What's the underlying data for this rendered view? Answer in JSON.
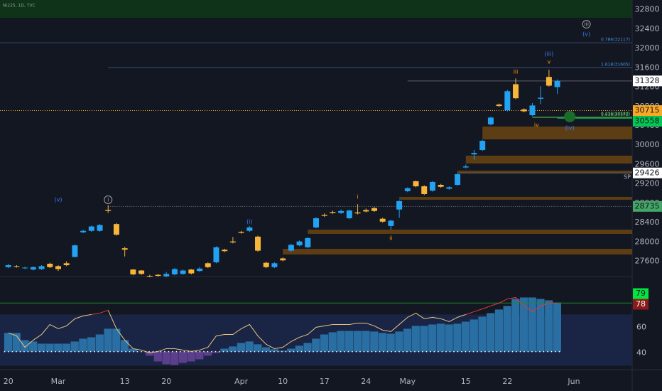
{
  "header": "NI225, 1D, TVC",
  "chart_data": {
    "type": "candlestick",
    "xlim": [
      -1,
      75
    ],
    "xticks": [
      {
        "value": 0,
        "label": "20"
      },
      {
        "value": 6,
        "label": "Mar"
      },
      {
        "value": 14,
        "label": "13"
      },
      {
        "value": 19,
        "label": "20"
      },
      {
        "value": 28,
        "label": "Apr"
      },
      {
        "value": 33,
        "label": "10"
      },
      {
        "value": 38,
        "label": "17"
      },
      {
        "value": 43,
        "label": "24"
      },
      {
        "value": 48,
        "label": "May"
      },
      {
        "value": 55,
        "label": "15"
      },
      {
        "value": 60,
        "label": "22"
      },
      {
        "value": 68,
        "label": "Jun"
      }
    ],
    "ylim": [
      27300,
      33000
    ],
    "yticks": [
      27600,
      28000,
      28400,
      28800,
      29200,
      29600,
      30000,
      30400,
      30800,
      31200,
      31600,
      32000,
      32400,
      32800
    ],
    "colors": {
      "up": "#22a2f2",
      "down": "#f7b53a"
    },
    "open": [
      27480,
      27500,
      27460,
      27430,
      27440,
      27550,
      27500,
      27560,
      27690,
      28200,
      28230,
      28230,
      28660,
      28370,
      27870,
      27430,
      27410,
      27300,
      27320,
      27290,
      27330,
      27340,
      27430,
      27400,
      27560,
      27580,
      27840,
      28010,
      28210,
      28230,
      28110,
      27570,
      27480,
      27660,
      27820,
      27930,
      27890,
      28300,
      28560,
      28620,
      28600,
      28490,
      28610,
      28660,
      28700,
      28480,
      28330,
      28670,
      29050,
      29255,
      29150,
      29060,
      29180,
      29100,
      29180,
      29540,
      29810,
      29900,
      30430,
      30840,
      30720,
      31260,
      30740,
      30620,
      30960,
      31410,
      31200
    ],
    "high": [
      27550,
      27520,
      27490,
      27500,
      27520,
      27570,
      27520,
      27600,
      27950,
      28250,
      28340,
      28370,
      28760,
      28390,
      27900,
      27440,
      27420,
      27320,
      27340,
      27380,
      27460,
      27430,
      27440,
      27480,
      27580,
      27910,
      27860,
      28100,
      28230,
      28330,
      28130,
      27590,
      27580,
      27680,
      27960,
      28030,
      28100,
      28510,
      28590,
      28650,
      28670,
      28670,
      28780,
      28690,
      28720,
      28500,
      28460,
      28860,
      29130,
      29270,
      29170,
      29260,
      29200,
      29150,
      29420,
      29600,
      29900,
      30110,
      30590,
      30860,
      31140,
      31380,
      30760,
      30870,
      31220,
      31560,
      31360
    ],
    "low": [
      27460,
      27470,
      27440,
      27410,
      27420,
      27460,
      27400,
      27500,
      27680,
      28180,
      28210,
      28210,
      28600,
      28130,
      27700,
      27310,
      27320,
      27270,
      27280,
      27270,
      27310,
      27320,
      27330,
      27380,
      27460,
      27560,
      27790,
      27970,
      28170,
      28210,
      27800,
      27460,
      27460,
      27600,
      27800,
      27910,
      27870,
      28280,
      28520,
      28580,
      28580,
      28470,
      28570,
      28610,
      28620,
      28400,
      28250,
      28500,
      29030,
      29130,
      28970,
      29040,
      29120,
      29080,
      29160,
      29520,
      29700,
      29880,
      30410,
      30790,
      30700,
      30950,
      30680,
      30600,
      30850,
      31210,
      31060
    ],
    "close": [
      27520,
      27490,
      27470,
      27480,
      27500,
      27480,
      27440,
      27520,
      27930,
      28230,
      28320,
      28350,
      28640,
      28150,
      27840,
      27330,
      27340,
      27290,
      27300,
      27340,
      27440,
      27410,
      27350,
      27450,
      27480,
      27890,
      27810,
      27990,
      28190,
      28300,
      27820,
      27480,
      27560,
      27620,
      27940,
      28010,
      28080,
      28490,
      28540,
      28600,
      28640,
      28650,
      28590,
      28630,
      28640,
      28420,
      28440,
      28845,
      29110,
      29150,
      28990,
      29240,
      29140,
      29130,
      29400,
      29560,
      29840,
      30090,
      30570,
      30810,
      31115,
      30970,
      30700,
      30820,
      30980,
      31230,
      31328
    ],
    "zone_color": "#5c3d14",
    "zones": [
      {
        "start": 57,
        "low": 30120,
        "high": 30385
      },
      {
        "start": 55,
        "low": 29621,
        "high": 29783
      },
      {
        "start": 54,
        "low": 29415,
        "high": 29474
      },
      {
        "start": 47,
        "low": 28872,
        "high": 28931
      },
      {
        "start": 36,
        "low": 28167,
        "high": 28255
      },
      {
        "start": 33,
        "low": 27741,
        "high": 27858
      }
    ],
    "levels": [
      {
        "label": "0.786(32117)",
        "value": 32117,
        "color": "#3d5a80",
        "start": -1
      },
      {
        "label": "1.618(31605)",
        "value": 31605,
        "color": "#3d5a80",
        "start": 12
      },
      {
        "label": "0.236(30580)",
        "value": 30580,
        "color": "#4caf50",
        "start": 63
      },
      {
        "label": "1.618(30572)",
        "value": 30572,
        "color": "#4caf50",
        "start": 63
      }
    ],
    "price_labels": [
      {
        "value": 31328,
        "bg": "#ffffff",
        "line": "#5d606b",
        "dashed": false,
        "start": 48
      },
      {
        "value": 30715,
        "bg": "#f9a825",
        "line": "#f9a825",
        "dashed": true,
        "start": -1
      },
      {
        "value": 30558,
        "bg": "#00c853",
        "line": "#00c853",
        "dashed": false,
        "start": 66
      },
      {
        "value": 29426,
        "bg": "#ffffff",
        "line": "#5d606b",
        "dashed": false,
        "start": 54
      },
      {
        "value": 28735,
        "bg": "#43a566",
        "line": "#787b86",
        "dashed": true,
        "start": 12
      }
    ],
    "annotations": [
      {
        "text": "(v)",
        "index": 6,
        "price": 28872,
        "color": "#3d7bff",
        "circle": false
      },
      {
        "text": "i",
        "index": 12,
        "price": 28872,
        "color": "#9e9e9e",
        "circle": true
      },
      {
        "text": "(i)",
        "index": 29,
        "price": 28416,
        "color": "#3d7bff",
        "circle": false
      },
      {
        "text": "i",
        "index": 42,
        "price": 28931,
        "color": "#ff9800",
        "circle": false
      },
      {
        "text": "ii",
        "index": 46,
        "price": 28079,
        "color": "#ff9800",
        "circle": false
      },
      {
        "text": "iii",
        "index": 61,
        "price": 31516,
        "color": "#ff9800",
        "circle": false
      },
      {
        "text": "(iii)",
        "index": 65,
        "price": 31884,
        "color": "#3d7bff",
        "circle": false
      },
      {
        "text": "v",
        "index": 65,
        "price": 31722,
        "color": "#ff9800",
        "circle": false
      },
      {
        "text": "iv",
        "index": 63.5,
        "price": 30414,
        "color": "#ff9800",
        "circle": false
      },
      {
        "text": "(iv)",
        "index": 67.5,
        "price": 30356,
        "color": "#3d7bff",
        "circle": false
      },
      {
        "text": "iii",
        "index": 69.5,
        "price": 32500,
        "color": "#9e9e9e",
        "circle": true
      },
      {
        "text": "(v)",
        "index": 69.5,
        "price": 32295,
        "color": "#3d7bff",
        "circle": false
      },
      {
        "text": "SP",
        "index": 74.4,
        "price": 29340,
        "color": "#b2b5be",
        "circle": false
      }
    ],
    "markers": [
      {
        "index": 67.5,
        "price": 30591,
        "color": "#1b6b2a"
      }
    ],
    "indicator": {
      "ylim": [
        28,
        93
      ],
      "yticks": [
        40,
        60
      ],
      "band": [
        30,
        70
      ],
      "band_color": "#1a2545",
      "histogram_base": 41,
      "histogram_colors": {
        "up": "#2a6fa3",
        "down": "#5b3f8c"
      },
      "histogram": [
        55.6,
        55.6,
        50,
        48.9,
        47.2,
        47.2,
        47.2,
        47.2,
        48.9,
        51.1,
        52.2,
        54.4,
        58.9,
        58.9,
        50,
        43.3,
        41.1,
        37.8,
        33.3,
        31.1,
        30.6,
        32.2,
        33.3,
        35,
        37.8,
        40,
        43.3,
        45,
        47.8,
        48.9,
        46.7,
        44.4,
        42.8,
        41.7,
        43.3,
        45.6,
        47.8,
        51.1,
        54.4,
        56.1,
        57.2,
        57.2,
        57.2,
        57.2,
        56.7,
        55.6,
        55,
        56.7,
        58.9,
        61.1,
        61.1,
        62.2,
        62.8,
        62.2,
        62.8,
        64.4,
        66.1,
        68.3,
        71.1,
        73.9,
        76.7,
        82.2,
        83.3,
        83.3,
        82.2,
        81.1,
        79.4
      ],
      "line": [
        55.6,
        53.3,
        44.4,
        50,
        54.4,
        62.2,
        58.9,
        61.1,
        66.7,
        68.9,
        70,
        71.1,
        73.3,
        58.9,
        50,
        43.3,
        42.2,
        40,
        41.1,
        43.3,
        43.3,
        42.2,
        41.1,
        42.2,
        44.4,
        53.3,
        54.4,
        54.4,
        58.9,
        62.2,
        53.3,
        46.7,
        43.3,
        44.4,
        48.9,
        52.2,
        54.4,
        60,
        61.1,
        62.2,
        62.2,
        62.2,
        63.3,
        63.3,
        61.1,
        57.8,
        56.7,
        62.2,
        67.8,
        71.1,
        66.7,
        67.8,
        66.7,
        64.4,
        67.8,
        70,
        72.2,
        74.4,
        76.7,
        78.9,
        82.2,
        83.3,
        76.7,
        72.2,
        76.7,
        78.9,
        78.9
      ],
      "line_color": "#e8c77d",
      "overbought_color": "#e53935",
      "labels": [
        {
          "value": 79,
          "bg": "#00e640",
          "line": "#1b8a2c"
        },
        {
          "value": 78,
          "bg": "#8b1a1a",
          "line": null
        }
      ]
    }
  }
}
